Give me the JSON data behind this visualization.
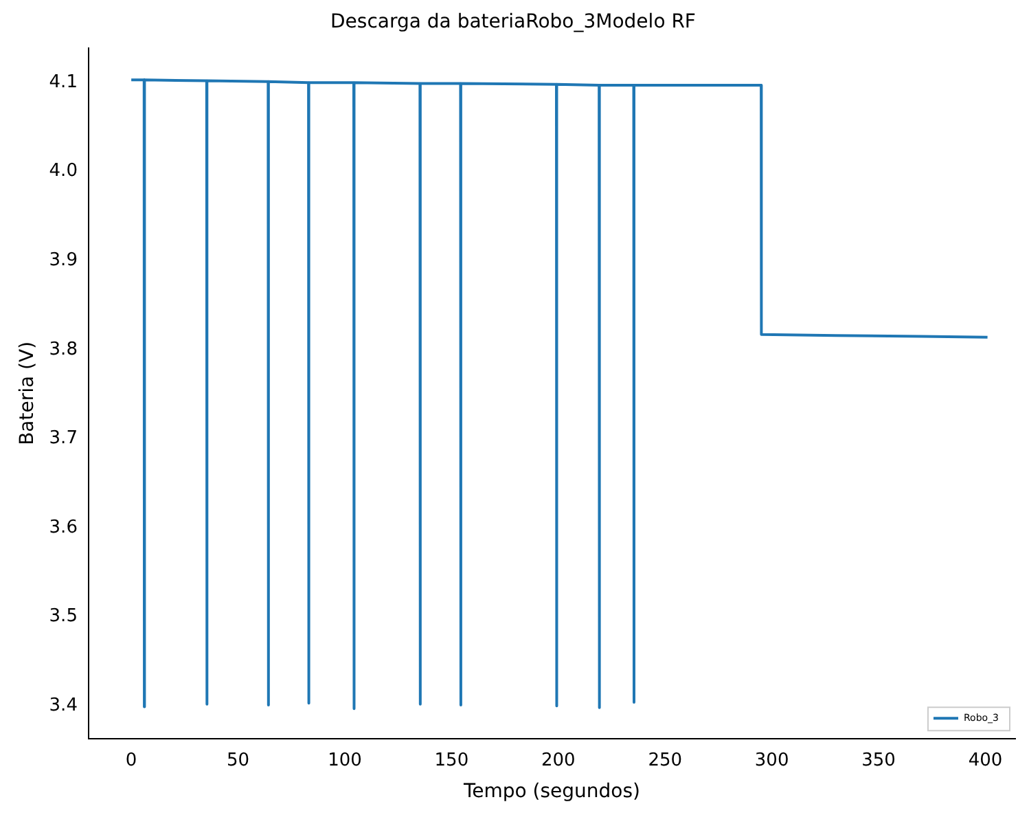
{
  "chart_data": {
    "type": "line",
    "title": "Descarga da bateriaRobo_3Modelo RF",
    "xlabel": "Tempo (segundos)",
    "ylabel": "Bateria (V)",
    "xlim": [
      -20,
      414
    ],
    "xticks": [
      0,
      50,
      100,
      150,
      200,
      250,
      300,
      350,
      400
    ],
    "ylim": [
      3.363,
      4.139
    ],
    "yticks": [
      3.4,
      3.5,
      3.6,
      3.7,
      3.8,
      3.9,
      {
        "value": 4.0,
        "label": "4.0"
      },
      4.1
    ],
    "legend": "bottom right",
    "grid": false,
    "marker": "none",
    "line_style": "solid",
    "series": [
      {
        "name": "Robo_3",
        "color": "#1f77b4",
        "x": [
          0,
          6,
          6.1,
          6.2,
          35.3,
          35.4,
          35.5,
          64.1,
          64.2,
          64.3,
          83,
          83.1,
          83.2,
          104.2,
          104.3,
          104.4,
          135.2,
          135.3,
          135.4,
          154.2,
          154.3,
          154.4,
          199.1,
          199.2,
          199.3,
          219.1,
          219.2,
          219.3,
          235.3,
          235.4,
          235.5,
          295,
          295.1,
          330,
          370,
          401
        ],
        "values": [
          4.103,
          4.103,
          3.399,
          4.103,
          4.102,
          3.402,
          4.102,
          4.101,
          3.401,
          4.101,
          4.1,
          3.403,
          4.1,
          4.1,
          3.397,
          4.1,
          4.099,
          3.402,
          4.099,
          4.099,
          3.401,
          4.099,
          4.098,
          3.4,
          4.098,
          4.097,
          3.398,
          4.097,
          4.097,
          3.404,
          4.097,
          4.097,
          3.817,
          3.816,
          3.815,
          3.814
        ]
      }
    ]
  }
}
